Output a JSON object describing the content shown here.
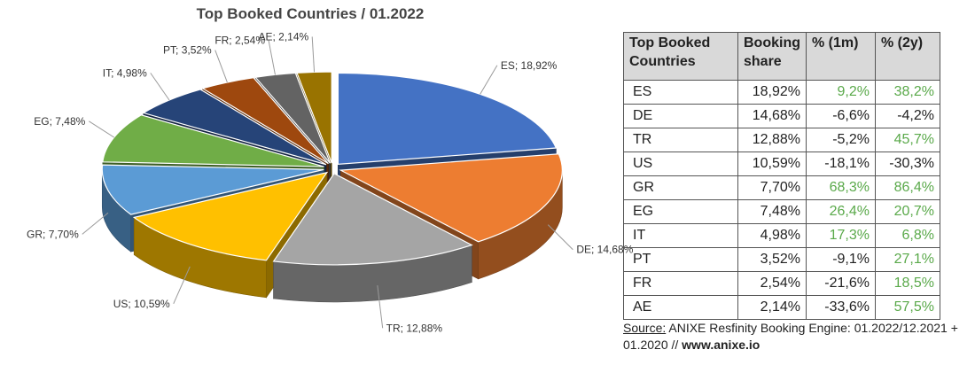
{
  "chart_data": {
    "type": "pie",
    "title": "Top Booked Countries / 01.2022",
    "slices": [
      {
        "label": "ES",
        "value": 18.92,
        "text": "ES; 18,92%",
        "color": "#4472c4"
      },
      {
        "label": "DE",
        "value": 14.68,
        "text": "DE; 14,68%",
        "color": "#ed7d31"
      },
      {
        "label": "TR",
        "value": 12.88,
        "text": "TR; 12,88%",
        "color": "#a5a5a5"
      },
      {
        "label": "US",
        "value": 10.59,
        "text": "US; 10,59%",
        "color": "#ffc000"
      },
      {
        "label": "GR",
        "value": 7.7,
        "text": "GR; 7,70%",
        "color": "#5b9bd5"
      },
      {
        "label": "EG",
        "value": 7.48,
        "text": "EG; 7,48%",
        "color": "#70ad47"
      },
      {
        "label": "IT",
        "value": 4.98,
        "text": "IT; 4,98%",
        "color": "#264478"
      },
      {
        "label": "PT",
        "value": 3.52,
        "text": "PT; 3,52%",
        "color": "#9e480e"
      },
      {
        "label": "FR",
        "value": 2.54,
        "text": "FR; 2,54%",
        "color": "#636363"
      },
      {
        "label": "AE",
        "value": 2.14,
        "text": "AE; 2,14%",
        "color": "#997300"
      }
    ],
    "table": {
      "headers": [
        "Top Booked Countries",
        "Booking share",
        "% (1m)",
        "% (2y)"
      ],
      "rows": [
        [
          "ES",
          "18,92%",
          "9,2%",
          "38,2%"
        ],
        [
          "DE",
          "14,68%",
          "-6,6%",
          "-4,2%"
        ],
        [
          "TR",
          "12,88%",
          "-5,2%",
          "45,7%"
        ],
        [
          "US",
          "10,59%",
          "-18,1%",
          "-30,3%"
        ],
        [
          "GR",
          "7,70%",
          "68,3%",
          "86,4%"
        ],
        [
          "EG",
          "7,48%",
          "26,4%",
          "20,7%"
        ],
        [
          "IT",
          "4,98%",
          "17,3%",
          "6,8%"
        ],
        [
          "PT",
          "3,52%",
          "-9,1%",
          "27,1%"
        ],
        [
          "FR",
          "2,54%",
          "-21,6%",
          "18,5%"
        ],
        [
          "AE",
          "2,14%",
          "-33,6%",
          "57,5%"
        ]
      ]
    }
  },
  "source": {
    "key": "Source:",
    "text": " ANIXE Resfinity Booking Engine: 01.2022/12.2021 + 01.2020 // ",
    "url": "www.anixe.io"
  },
  "colors": {
    "positive": "#5aa94a",
    "negative": "#222222",
    "header_bg": "#d9d9d9"
  }
}
